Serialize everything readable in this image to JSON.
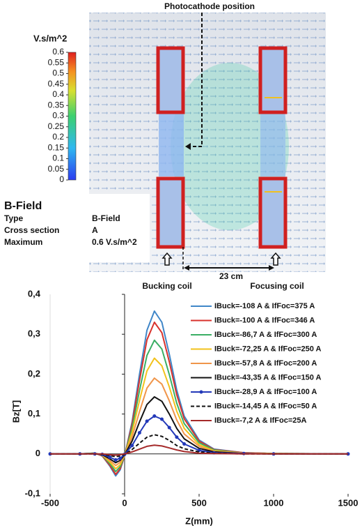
{
  "figure": {
    "annotation": "Photocathode position",
    "colorbar": {
      "label": "V.s/m^2",
      "ticks": [
        0.6,
        0.55,
        0.5,
        0.45,
        0.4,
        0.35,
        0.3,
        0.25,
        0.2,
        0.15,
        0.1,
        0.05,
        0
      ]
    },
    "panel": {
      "title": "B-Field",
      "rows": [
        [
          "Type",
          "B-Field"
        ],
        [
          "Cross section",
          "A"
        ],
        [
          "Maximum",
          "0.6 V.s/m^2"
        ]
      ]
    },
    "distance": "23 cm",
    "coil_labels": [
      "Bucking coil",
      "Focusing coil"
    ]
  },
  "chart_data": {
    "type": "line",
    "xlabel": "Z(mm)",
    "ylabel": "Bz[T]",
    "x": [
      -500,
      -300,
      -200,
      -150,
      -100,
      -60,
      -30,
      0,
      50,
      100,
      150,
      200,
      250,
      300,
      350,
      400,
      500,
      600,
      800,
      1000,
      1500
    ],
    "xlim": [
      -500,
      1500
    ],
    "xticks": [
      -500,
      0,
      500,
      1000,
      1500
    ],
    "ylim": [
      -0.1,
      0.4
    ],
    "yticks": [
      {
        "value": 0.4,
        "label": "0,4"
      },
      {
        "value": 0.3,
        "label": "0,3"
      },
      {
        "value": 0.2,
        "label": "0,2"
      },
      {
        "value": 0.1,
        "label": "0,1"
      },
      0,
      {
        "value": -0.1,
        "label": "-0,1"
      }
    ],
    "grid": false,
    "series": [
      {
        "name": "IBuck=-108 A & IfFoc=375 A",
        "color": "#3f86c8",
        "values": [
          0,
          0,
          0.002,
          -0.005,
          -0.03,
          -0.055,
          -0.04,
          -0.005,
          0.08,
          0.2,
          0.31,
          0.358,
          0.33,
          0.25,
          0.16,
          0.095,
          0.035,
          0.012,
          0.003,
          0.001,
          0
        ]
      },
      {
        "name": "IBuck=-100 A & IfFoc=346 A",
        "color": "#d8322c",
        "values": [
          0,
          0,
          0.002,
          -0.005,
          -0.028,
          -0.051,
          -0.037,
          -0.005,
          0.074,
          0.184,
          0.286,
          0.33,
          0.304,
          0.231,
          0.148,
          0.088,
          0.032,
          0.011,
          0.003,
          0.001,
          0
        ]
      },
      {
        "name": "IBuck=-86,7 A & IfFoc=300 A",
        "color": "#3aae64",
        "values": [
          0,
          0,
          0.002,
          -0.004,
          -0.024,
          -0.044,
          -0.032,
          -0.004,
          0.064,
          0.159,
          0.247,
          0.285,
          0.263,
          0.199,
          0.127,
          0.076,
          0.028,
          0.01,
          0.002,
          0.001,
          0
        ]
      },
      {
        "name": "IBuck=-72,25 A & IfFoc=250 A",
        "color": "#f2c21b",
        "values": [
          0,
          0,
          0.001,
          -0.003,
          -0.02,
          -0.037,
          -0.027,
          -0.003,
          0.054,
          0.134,
          0.208,
          0.24,
          0.221,
          0.168,
          0.107,
          0.064,
          0.023,
          0.008,
          0.002,
          0.001,
          0
        ]
      },
      {
        "name": "IBuck=-57,8 A & IfFoc=200 A",
        "color": "#f0954a",
        "values": [
          0,
          0,
          0.001,
          -0.003,
          -0.016,
          -0.029,
          -0.021,
          -0.003,
          0.042,
          0.106,
          0.165,
          0.19,
          0.175,
          0.133,
          0.085,
          0.05,
          0.019,
          0.006,
          0.002,
          0,
          0
        ]
      },
      {
        "name": "IBuck=-43,35 A & IfFoc=150 A",
        "color": "#111111",
        "values": [
          0,
          0,
          0.001,
          -0.002,
          -0.012,
          -0.022,
          -0.016,
          -0.002,
          0.032,
          0.08,
          0.124,
          0.143,
          0.132,
          0.1,
          0.064,
          0.038,
          0.014,
          0.005,
          0.001,
          0,
          0
        ]
      },
      {
        "name": "IBuck=-28,9 A & IfFoc=100 A",
        "color": "#2238b8",
        "markers": true,
        "values": [
          0,
          0,
          0,
          -0.001,
          -0.008,
          -0.015,
          -0.011,
          -0.001,
          0.021,
          0.053,
          0.082,
          0.095,
          0.087,
          0.066,
          0.042,
          0.025,
          0.009,
          0.003,
          0.001,
          0,
          0
        ]
      },
      {
        "name": "IBuck=-14,45 A & IfFoc=50 A",
        "color": "#111111",
        "dashed": true,
        "values": [
          0,
          0,
          0,
          -0.001,
          -0.004,
          -0.007,
          -0.005,
          -0.001,
          0.011,
          0.027,
          0.042,
          0.048,
          0.044,
          0.034,
          0.021,
          0.013,
          0.005,
          0.002,
          0,
          0,
          0
        ]
      },
      {
        "name": "IBuck=-7,2 A & IfFoc=25A",
        "color": "#a52a2a",
        "values": [
          0,
          0,
          0,
          0,
          -0.002,
          -0.003,
          -0.002,
          0,
          0.005,
          0.012,
          0.019,
          0.022,
          0.02,
          0.015,
          0.01,
          0.006,
          0.002,
          0.001,
          0,
          0,
          0
        ]
      }
    ]
  }
}
